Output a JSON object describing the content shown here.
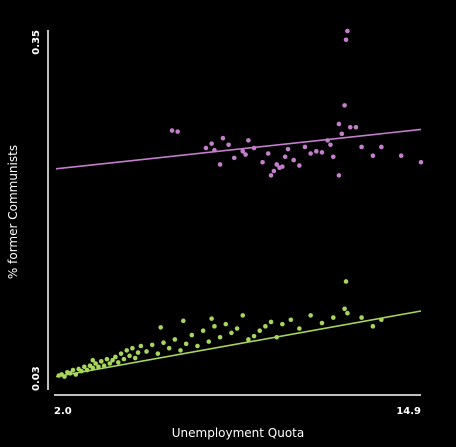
{
  "chart_data": {
    "type": "scatter",
    "title": "",
    "xlabel": "Unemployment Quota",
    "ylabel": "% former Communists",
    "xlim": [
      2.0,
      14.9
    ],
    "ylim": [
      0.03,
      0.35
    ],
    "x_ticks": [
      "2.0",
      "14.9"
    ],
    "y_ticks": [
      "0.03",
      "0.35"
    ],
    "grid": false,
    "legend": "none",
    "series": [
      {
        "color": "#c47fcc",
        "points": [
          [
            6.1,
            0.259
          ],
          [
            6.3,
            0.258
          ],
          [
            7.3,
            0.243
          ],
          [
            7.5,
            0.247
          ],
          [
            7.6,
            0.241
          ],
          [
            7.9,
            0.252
          ],
          [
            8.1,
            0.246
          ],
          [
            8.3,
            0.234
          ],
          [
            8.6,
            0.24
          ],
          [
            8.7,
            0.237
          ],
          [
            8.8,
            0.25
          ],
          [
            9.0,
            0.243
          ],
          [
            9.3,
            0.23
          ],
          [
            9.5,
            0.238
          ],
          [
            9.6,
            0.218
          ],
          [
            9.7,
            0.222
          ],
          [
            9.8,
            0.228
          ],
          [
            10.0,
            0.226
          ],
          [
            10.1,
            0.235
          ],
          [
            10.2,
            0.242
          ],
          [
            10.4,
            0.232
          ],
          [
            10.6,
            0.227
          ],
          [
            10.8,
            0.244
          ],
          [
            11.0,
            0.238
          ],
          [
            11.2,
            0.24
          ],
          [
            11.4,
            0.239
          ],
          [
            11.6,
            0.25
          ],
          [
            11.7,
            0.246
          ],
          [
            11.8,
            0.235
          ],
          [
            12.0,
            0.265
          ],
          [
            12.1,
            0.256
          ],
          [
            12.2,
            0.282
          ],
          [
            12.25,
            0.342
          ],
          [
            12.3,
            0.35
          ],
          [
            12.4,
            0.262
          ],
          [
            12.6,
            0.262
          ],
          [
            12.8,
            0.244
          ],
          [
            13.2,
            0.236
          ],
          [
            13.5,
            0.244
          ],
          [
            14.2,
            0.236
          ],
          [
            14.9,
            0.23
          ],
          [
            12.0,
            0.218
          ],
          [
            7.8,
            0.228
          ],
          [
            9.9,
            0.225
          ]
        ],
        "fit": [
          [
            2.0,
            0.224
          ],
          [
            14.9,
            0.26
          ]
        ]
      },
      {
        "color": "#a8d65c",
        "points": [
          [
            2.1,
            0.035
          ],
          [
            2.2,
            0.036
          ],
          [
            2.3,
            0.034
          ],
          [
            2.4,
            0.038
          ],
          [
            2.5,
            0.037
          ],
          [
            2.6,
            0.04
          ],
          [
            2.7,
            0.036
          ],
          [
            2.8,
            0.041
          ],
          [
            2.9,
            0.039
          ],
          [
            3.0,
            0.043
          ],
          [
            3.1,
            0.04
          ],
          [
            3.2,
            0.044
          ],
          [
            3.3,
            0.042
          ],
          [
            3.4,
            0.046
          ],
          [
            3.5,
            0.043
          ],
          [
            3.6,
            0.048
          ],
          [
            3.7,
            0.044
          ],
          [
            3.8,
            0.05
          ],
          [
            3.9,
            0.046
          ],
          [
            4.0,
            0.049
          ],
          [
            4.1,
            0.052
          ],
          [
            4.2,
            0.047
          ],
          [
            4.3,
            0.055
          ],
          [
            4.4,
            0.05
          ],
          [
            4.5,
            0.058
          ],
          [
            4.6,
            0.053
          ],
          [
            4.7,
            0.06
          ],
          [
            4.8,
            0.051
          ],
          [
            4.9,
            0.056
          ],
          [
            5.0,
            0.062
          ],
          [
            5.2,
            0.057
          ],
          [
            5.4,
            0.063
          ],
          [
            5.6,
            0.055
          ],
          [
            5.8,
            0.065
          ],
          [
            6.0,
            0.06
          ],
          [
            6.2,
            0.068
          ],
          [
            6.4,
            0.058
          ],
          [
            6.6,
            0.064
          ],
          [
            6.8,
            0.072
          ],
          [
            7.0,
            0.062
          ],
          [
            7.2,
            0.076
          ],
          [
            7.4,
            0.066
          ],
          [
            7.6,
            0.08
          ],
          [
            7.8,
            0.07
          ],
          [
            8.0,
            0.082
          ],
          [
            8.2,
            0.074
          ],
          [
            8.4,
            0.078
          ],
          [
            8.6,
            0.09
          ],
          [
            8.8,
            0.068
          ],
          [
            9.0,
            0.071
          ],
          [
            9.2,
            0.076
          ],
          [
            9.4,
            0.08
          ],
          [
            9.6,
            0.084
          ],
          [
            9.8,
            0.07
          ],
          [
            10.0,
            0.082
          ],
          [
            10.3,
            0.086
          ],
          [
            10.6,
            0.078
          ],
          [
            11.0,
            0.09
          ],
          [
            11.4,
            0.083
          ],
          [
            11.8,
            0.088
          ],
          [
            12.2,
            0.096
          ],
          [
            12.3,
            0.092
          ],
          [
            12.8,
            0.088
          ],
          [
            13.2,
            0.08
          ],
          [
            13.5,
            0.086
          ],
          [
            12.25,
            0.121
          ],
          [
            7.5,
            0.087
          ],
          [
            6.5,
            0.085
          ],
          [
            5.7,
            0.079
          ],
          [
            3.3,
            0.049
          ]
        ],
        "fit": [
          [
            2.0,
            0.034
          ],
          [
            14.9,
            0.094
          ]
        ]
      }
    ]
  }
}
